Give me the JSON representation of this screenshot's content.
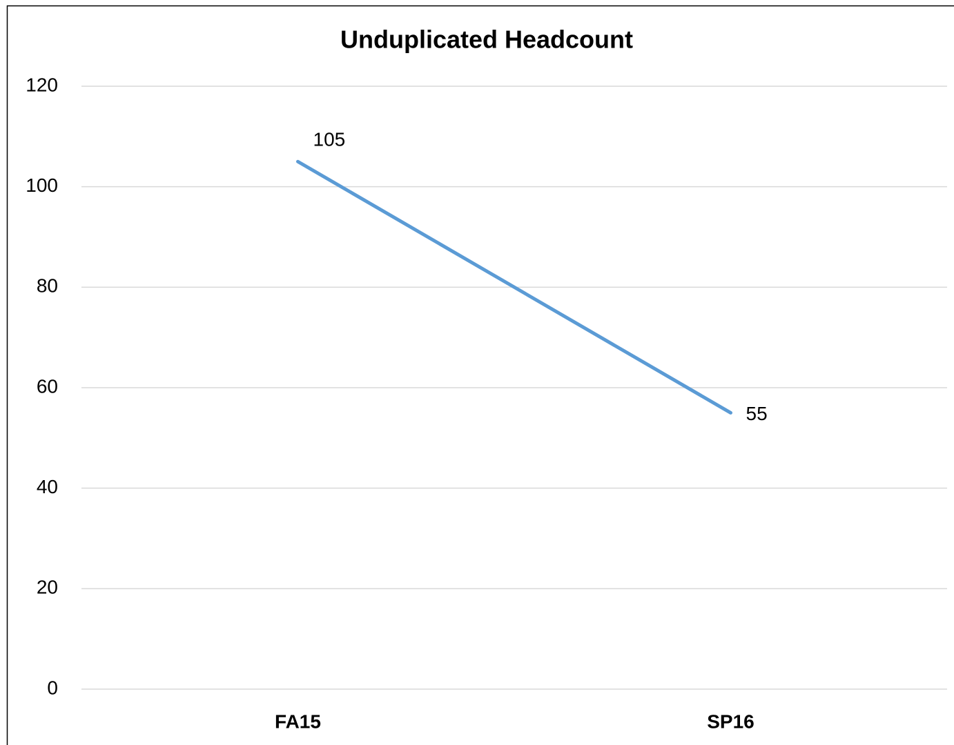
{
  "chart_data": {
    "type": "line",
    "title": "Unduplicated Headcount",
    "categories": [
      "FA15",
      "SP16"
    ],
    "values": [
      105,
      55
    ],
    "color": "#5b9bd5",
    "ylim": [
      0,
      120
    ],
    "yticks": [
      0,
      20,
      40,
      60,
      80,
      100,
      120
    ],
    "grid": true
  }
}
